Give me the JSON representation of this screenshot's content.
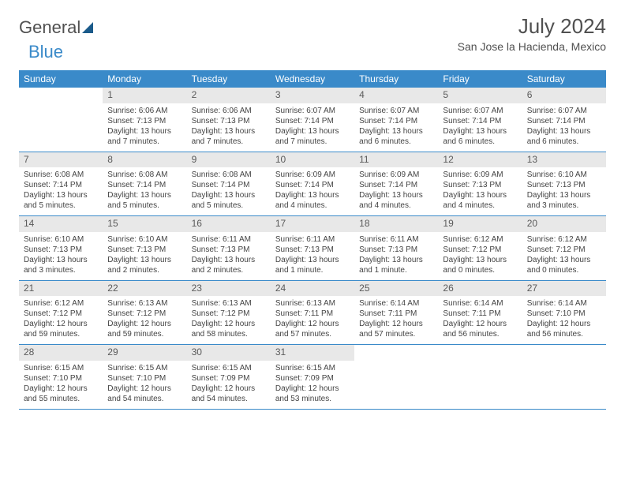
{
  "logo": {
    "part1": "General",
    "part2": "Blue"
  },
  "title": "July 2024",
  "location": "San Jose la Hacienda, Mexico",
  "colors": {
    "header_bg": "#3a8ac9",
    "header_text": "#ffffff",
    "daynum_bg": "#e8e8e8",
    "week_border": "#3a8ac9",
    "text": "#444444",
    "title_color": "#505050"
  },
  "day_headers": [
    "Sunday",
    "Monday",
    "Tuesday",
    "Wednesday",
    "Thursday",
    "Friday",
    "Saturday"
  ],
  "weeks": [
    [
      {
        "num": "",
        "sunrise": "",
        "sunset": "",
        "daylight": ""
      },
      {
        "num": "1",
        "sunrise": "Sunrise: 6:06 AM",
        "sunset": "Sunset: 7:13 PM",
        "daylight": "Daylight: 13 hours and 7 minutes."
      },
      {
        "num": "2",
        "sunrise": "Sunrise: 6:06 AM",
        "sunset": "Sunset: 7:13 PM",
        "daylight": "Daylight: 13 hours and 7 minutes."
      },
      {
        "num": "3",
        "sunrise": "Sunrise: 6:07 AM",
        "sunset": "Sunset: 7:14 PM",
        "daylight": "Daylight: 13 hours and 7 minutes."
      },
      {
        "num": "4",
        "sunrise": "Sunrise: 6:07 AM",
        "sunset": "Sunset: 7:14 PM",
        "daylight": "Daylight: 13 hours and 6 minutes."
      },
      {
        "num": "5",
        "sunrise": "Sunrise: 6:07 AM",
        "sunset": "Sunset: 7:14 PM",
        "daylight": "Daylight: 13 hours and 6 minutes."
      },
      {
        "num": "6",
        "sunrise": "Sunrise: 6:07 AM",
        "sunset": "Sunset: 7:14 PM",
        "daylight": "Daylight: 13 hours and 6 minutes."
      }
    ],
    [
      {
        "num": "7",
        "sunrise": "Sunrise: 6:08 AM",
        "sunset": "Sunset: 7:14 PM",
        "daylight": "Daylight: 13 hours and 5 minutes."
      },
      {
        "num": "8",
        "sunrise": "Sunrise: 6:08 AM",
        "sunset": "Sunset: 7:14 PM",
        "daylight": "Daylight: 13 hours and 5 minutes."
      },
      {
        "num": "9",
        "sunrise": "Sunrise: 6:08 AM",
        "sunset": "Sunset: 7:14 PM",
        "daylight": "Daylight: 13 hours and 5 minutes."
      },
      {
        "num": "10",
        "sunrise": "Sunrise: 6:09 AM",
        "sunset": "Sunset: 7:14 PM",
        "daylight": "Daylight: 13 hours and 4 minutes."
      },
      {
        "num": "11",
        "sunrise": "Sunrise: 6:09 AM",
        "sunset": "Sunset: 7:14 PM",
        "daylight": "Daylight: 13 hours and 4 minutes."
      },
      {
        "num": "12",
        "sunrise": "Sunrise: 6:09 AM",
        "sunset": "Sunset: 7:13 PM",
        "daylight": "Daylight: 13 hours and 4 minutes."
      },
      {
        "num": "13",
        "sunrise": "Sunrise: 6:10 AM",
        "sunset": "Sunset: 7:13 PM",
        "daylight": "Daylight: 13 hours and 3 minutes."
      }
    ],
    [
      {
        "num": "14",
        "sunrise": "Sunrise: 6:10 AM",
        "sunset": "Sunset: 7:13 PM",
        "daylight": "Daylight: 13 hours and 3 minutes."
      },
      {
        "num": "15",
        "sunrise": "Sunrise: 6:10 AM",
        "sunset": "Sunset: 7:13 PM",
        "daylight": "Daylight: 13 hours and 2 minutes."
      },
      {
        "num": "16",
        "sunrise": "Sunrise: 6:11 AM",
        "sunset": "Sunset: 7:13 PM",
        "daylight": "Daylight: 13 hours and 2 minutes."
      },
      {
        "num": "17",
        "sunrise": "Sunrise: 6:11 AM",
        "sunset": "Sunset: 7:13 PM",
        "daylight": "Daylight: 13 hours and 1 minute."
      },
      {
        "num": "18",
        "sunrise": "Sunrise: 6:11 AM",
        "sunset": "Sunset: 7:13 PM",
        "daylight": "Daylight: 13 hours and 1 minute."
      },
      {
        "num": "19",
        "sunrise": "Sunrise: 6:12 AM",
        "sunset": "Sunset: 7:12 PM",
        "daylight": "Daylight: 13 hours and 0 minutes."
      },
      {
        "num": "20",
        "sunrise": "Sunrise: 6:12 AM",
        "sunset": "Sunset: 7:12 PM",
        "daylight": "Daylight: 13 hours and 0 minutes."
      }
    ],
    [
      {
        "num": "21",
        "sunrise": "Sunrise: 6:12 AM",
        "sunset": "Sunset: 7:12 PM",
        "daylight": "Daylight: 12 hours and 59 minutes."
      },
      {
        "num": "22",
        "sunrise": "Sunrise: 6:13 AM",
        "sunset": "Sunset: 7:12 PM",
        "daylight": "Daylight: 12 hours and 59 minutes."
      },
      {
        "num": "23",
        "sunrise": "Sunrise: 6:13 AM",
        "sunset": "Sunset: 7:12 PM",
        "daylight": "Daylight: 12 hours and 58 minutes."
      },
      {
        "num": "24",
        "sunrise": "Sunrise: 6:13 AM",
        "sunset": "Sunset: 7:11 PM",
        "daylight": "Daylight: 12 hours and 57 minutes."
      },
      {
        "num": "25",
        "sunrise": "Sunrise: 6:14 AM",
        "sunset": "Sunset: 7:11 PM",
        "daylight": "Daylight: 12 hours and 57 minutes."
      },
      {
        "num": "26",
        "sunrise": "Sunrise: 6:14 AM",
        "sunset": "Sunset: 7:11 PM",
        "daylight": "Daylight: 12 hours and 56 minutes."
      },
      {
        "num": "27",
        "sunrise": "Sunrise: 6:14 AM",
        "sunset": "Sunset: 7:10 PM",
        "daylight": "Daylight: 12 hours and 56 minutes."
      }
    ],
    [
      {
        "num": "28",
        "sunrise": "Sunrise: 6:15 AM",
        "sunset": "Sunset: 7:10 PM",
        "daylight": "Daylight: 12 hours and 55 minutes."
      },
      {
        "num": "29",
        "sunrise": "Sunrise: 6:15 AM",
        "sunset": "Sunset: 7:10 PM",
        "daylight": "Daylight: 12 hours and 54 minutes."
      },
      {
        "num": "30",
        "sunrise": "Sunrise: 6:15 AM",
        "sunset": "Sunset: 7:09 PM",
        "daylight": "Daylight: 12 hours and 54 minutes."
      },
      {
        "num": "31",
        "sunrise": "Sunrise: 6:15 AM",
        "sunset": "Sunset: 7:09 PM",
        "daylight": "Daylight: 12 hours and 53 minutes."
      },
      {
        "num": "",
        "sunrise": "",
        "sunset": "",
        "daylight": ""
      },
      {
        "num": "",
        "sunrise": "",
        "sunset": "",
        "daylight": ""
      },
      {
        "num": "",
        "sunrise": "",
        "sunset": "",
        "daylight": ""
      }
    ]
  ]
}
